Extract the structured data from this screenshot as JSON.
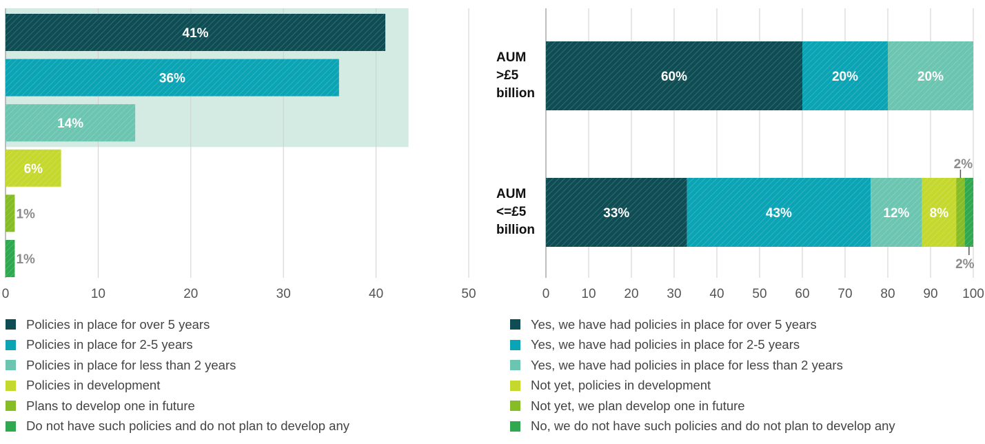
{
  "colors": {
    "dark_teal": "#0e4d53",
    "teal": "#0aa4b5",
    "light_teal": "#6cc5b0",
    "yellow_green": "#c4d82e",
    "green": "#86bc25",
    "bright_green": "#2fa84f",
    "highlight_band": "#d3ebe3",
    "grid": "#cfcfcf",
    "axis_text": "#555555",
    "outside_label": "#8c8c8c"
  },
  "chart_data": [
    {
      "type": "bar",
      "orientation": "horizontal",
      "categories": [
        "Policies in place for over 5 years",
        "Policies in place for 2-5 years",
        "Policies in place for less than 2 years",
        "Policies in development",
        "Plans to develop one in future",
        "Do not have such policies and do not plan to develop any"
      ],
      "values": [
        41,
        36,
        14,
        6,
        1,
        1
      ],
      "data_labels": [
        "41%",
        "36%",
        "14%",
        "6%",
        "1%",
        "1%"
      ],
      "colors": [
        "#0e4d53",
        "#0aa4b5",
        "#6cc5b0",
        "#c4d82e",
        "#86bc25",
        "#2fa84f"
      ],
      "xlim": [
        0,
        50
      ],
      "xticks": [
        0,
        10,
        20,
        30,
        40,
        50
      ],
      "highlight_categories": [
        0,
        1,
        2
      ],
      "grid": true,
      "legend": "bottom"
    },
    {
      "type": "bar",
      "orientation": "horizontal",
      "stacked": true,
      "categories": [
        "AUM >£5 billion",
        "AUM <=£5 billion"
      ],
      "category_lines": [
        [
          "AUM",
          ">£5",
          "billion"
        ],
        [
          "AUM",
          "<=£5",
          "billion"
        ]
      ],
      "series": [
        {
          "name": "Yes, we have had policies in place for over 5 years",
          "values": [
            60,
            33
          ],
          "labels": [
            "60%",
            "33%"
          ],
          "color": "#0e4d53"
        },
        {
          "name": "Yes, we have had policies in place for 2-5 years",
          "values": [
            20,
            43
          ],
          "labels": [
            "20%",
            "43%"
          ],
          "color": "#0aa4b5"
        },
        {
          "name": "Yes, we have had policies in place for less than 2 years",
          "values": [
            20,
            12
          ],
          "labels": [
            "20%",
            "12%"
          ],
          "color": "#6cc5b0"
        },
        {
          "name": "Not yet, policies in development",
          "values": [
            0,
            8
          ],
          "labels": [
            "",
            "8%"
          ],
          "color": "#c4d82e"
        },
        {
          "name": "Not yet, we plan develop one in future",
          "values": [
            0,
            2
          ],
          "labels": [
            "",
            "2%"
          ],
          "color": "#86bc25"
        },
        {
          "name": "No, we do not have such policies and do not plan to develop any",
          "values": [
            0,
            2
          ],
          "labels": [
            "",
            "2%"
          ],
          "color": "#2fa84f"
        }
      ],
      "xlim": [
        0,
        100
      ],
      "xticks": [
        0,
        10,
        20,
        30,
        40,
        50,
        60,
        70,
        80,
        90,
        100
      ],
      "grid": true,
      "legend": "bottom"
    }
  ]
}
